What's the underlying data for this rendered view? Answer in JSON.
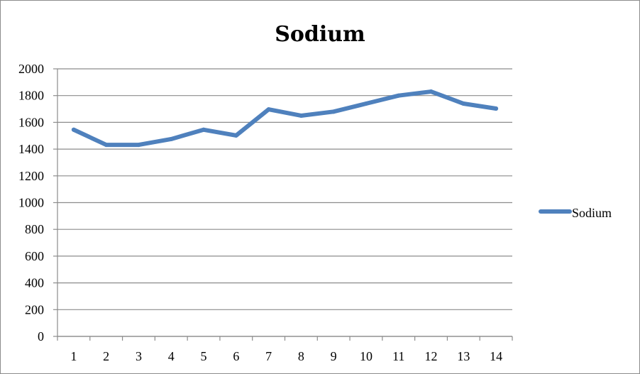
{
  "chart_data": {
    "type": "line",
    "title": "Sodium",
    "categories": [
      "1",
      "2",
      "3",
      "4",
      "5",
      "6",
      "7",
      "8",
      "9",
      "10",
      "11",
      "12",
      "13",
      "14"
    ],
    "series": [
      {
        "name": "Sodium",
        "values": [
          1545,
          1432,
          1432,
          1475,
          1545,
          1502,
          1697,
          1650,
          1680,
          1740,
          1800,
          1830,
          1740,
          1703
        ]
      }
    ],
    "ylim": [
      0,
      2000
    ],
    "yticks": [
      "0",
      "200",
      "400",
      "600",
      "800",
      "1000",
      "1200",
      "1400",
      "1600",
      "1800",
      "2000"
    ],
    "grid": true,
    "legend": "right",
    "colors": {
      "series": "#4F81BD",
      "grid": "#8c8c8c",
      "axis": "#8c8c8c"
    }
  }
}
